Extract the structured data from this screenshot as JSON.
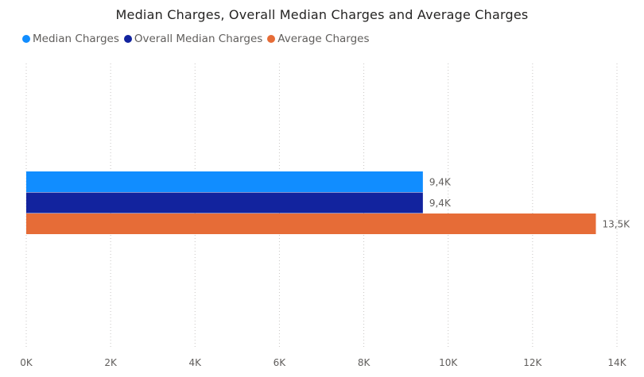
{
  "chart_data": {
    "type": "bar",
    "orientation": "horizontal",
    "title": "Median Charges, Overall Median Charges and Average Charges",
    "xlim": [
      0,
      14000
    ],
    "x_ticks": [
      0,
      2000,
      4000,
      6000,
      8000,
      10000,
      12000,
      14000
    ],
    "x_tick_labels": [
      "0K",
      "2K",
      "4K",
      "6K",
      "8K",
      "10K",
      "12K",
      "14K"
    ],
    "grid": "vertical dotted",
    "legend_position": "top-left",
    "series": [
      {
        "name": "Median Charges",
        "value": 9400,
        "label": "9,4K",
        "color": "#118DFF"
      },
      {
        "name": "Overall Median Charges",
        "value": 9400,
        "label": "9,4K",
        "color": "#12239E"
      },
      {
        "name": "Average Charges",
        "value": 13500,
        "label": "13,5K",
        "color": "#E66C37"
      }
    ]
  }
}
